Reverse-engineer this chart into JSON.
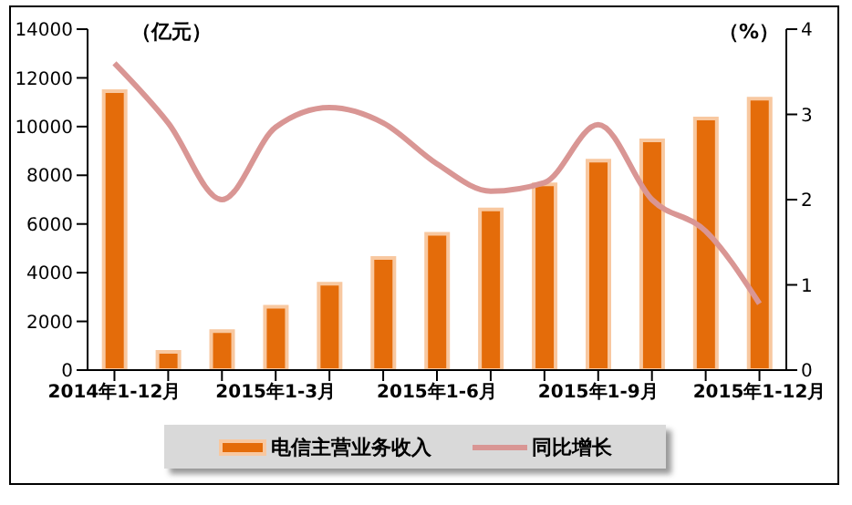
{
  "chart_data": {
    "type": "bar",
    "ylabel": "（亿元）",
    "y2label": "（%）",
    "categories": [
      "2014年1-12月",
      null,
      null,
      "2015年1-3月",
      null,
      null,
      "2015年1-6月",
      null,
      null,
      "2015年1-9月",
      null,
      null,
      "2015年1-12月"
    ],
    "series": [
      {
        "name": "电信主营业务收入",
        "color": "#e46c0a",
        "values": [
          11450,
          750,
          1600,
          2600,
          3550,
          4600,
          5600,
          6600,
          7630,
          8600,
          9430,
          10330,
          11150
        ]
      },
      {
        "name": "同比增长",
        "type": "line",
        "axis": "y2",
        "color": "#d99694",
        "values": [
          3.6,
          2.9,
          2.0,
          2.85,
          3.08,
          2.9,
          2.42,
          2.1,
          2.2,
          2.88,
          2.0,
          1.63,
          0.78
        ]
      }
    ],
    "ylim": [
      0,
      14000
    ],
    "yticks": [
      0,
      2000,
      4000,
      6000,
      8000,
      10000,
      12000,
      14000
    ],
    "y2lim": [
      0,
      4
    ],
    "y2ticks": [
      0,
      1,
      2,
      3,
      4
    ],
    "grid": false,
    "legend": "bottom",
    "marker": "none",
    "line_style": "solid"
  }
}
